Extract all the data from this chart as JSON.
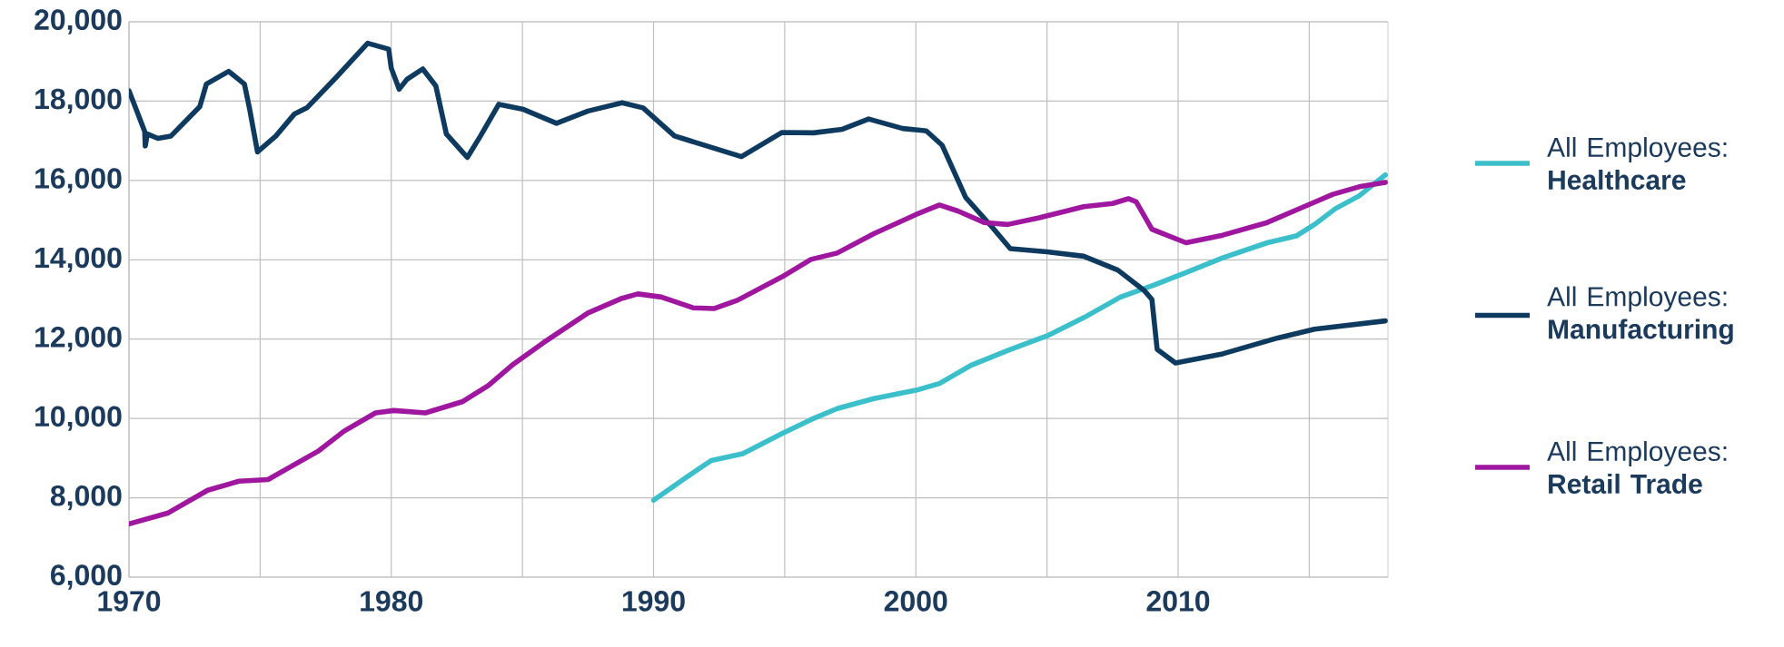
{
  "chart_data": {
    "type": "line",
    "xlim": [
      1970,
      2018
    ],
    "ylim": [
      6000,
      20000
    ],
    "xticks": [
      1970,
      {
        "value": 1975,
        "label": null
      },
      1980,
      {
        "value": 1985,
        "label": null
      },
      1990,
      {
        "value": 1995,
        "label": null
      },
      2000,
      {
        "value": 2005,
        "label": null
      },
      2010,
      {
        "value": 2015,
        "label": null
      }
    ],
    "yticks": [
      {
        "value": 6000,
        "label": "6,000"
      },
      {
        "value": 8000,
        "label": "8,000"
      },
      {
        "value": 10000,
        "label": "10,000"
      },
      {
        "value": 12000,
        "label": "12,000"
      },
      {
        "value": 14000,
        "label": "14,000"
      },
      {
        "value": 16000,
        "label": "16,000"
      },
      {
        "value": 18000,
        "label": "18,000"
      },
      {
        "value": 20000,
        "label": "20,000"
      }
    ],
    "grid": true,
    "legend": "right",
    "series": [
      {
        "name": "All Employees: **Healthcare**",
        "color": "#3bbfca",
        "x": [
          1990.0,
          1991.3,
          1992.2,
          1993.4,
          1994.9,
          1996.0,
          1997.0,
          1998.4,
          2000.0,
          2000.9,
          2002.1,
          2003.6,
          2005.0,
          2006.4,
          2007.8,
          2009.1,
          2010.3,
          2011.7,
          2013.4,
          2014.5,
          2015.2,
          2016.0,
          2016.9,
          2017.9
        ],
        "values": [
          7940,
          8540,
          8940,
          9110,
          9620,
          9970,
          10250,
          10500,
          10710,
          10880,
          11340,
          11740,
          12080,
          12540,
          13060,
          13370,
          13680,
          14050,
          14430,
          14600,
          14890,
          15290,
          15610,
          16140
        ]
      },
      {
        "name": "All Employees: **Manufacturing**",
        "color": "#0f3a5f",
        "x": [
          1970.0,
          1970.6,
          1970.62,
          1970.7,
          1971.1,
          1971.6,
          1972.7,
          1972.95,
          1973.8,
          1974.4,
          1974.6,
          1974.9,
          1975.6,
          1976.3,
          1976.8,
          1977.9,
          1979.1,
          1979.9,
          1980.0,
          1980.3,
          1980.6,
          1981.2,
          1981.7,
          1982.1,
          1982.9,
          1983.4,
          1984.1,
          1985.0,
          1986.3,
          1987.5,
          1988.8,
          1989.6,
          1990.8,
          1991.1,
          1993.35,
          1994.9,
          1996.1,
          1997.2,
          1998.2,
          1999.5,
          2000.4,
          2001.0,
          2001.9,
          2002.9,
          2003.6,
          2005.0,
          2006.4,
          2007.7,
          2008.7,
          2009.0,
          2009.2,
          2009.9,
          2011.7,
          2013.8,
          2015.2,
          2017.9
        ],
        "values": [
          18260,
          17230,
          16870,
          17170,
          17060,
          17120,
          17860,
          18430,
          18750,
          18430,
          17800,
          16720,
          17120,
          17670,
          17840,
          18600,
          19460,
          19310,
          18830,
          18300,
          18550,
          18810,
          18380,
          17170,
          16580,
          17120,
          17920,
          17800,
          17440,
          17750,
          17960,
          17830,
          17120,
          17060,
          16600,
          17210,
          17200,
          17290,
          17550,
          17310,
          17250,
          16890,
          15570,
          14830,
          14280,
          14200,
          14090,
          13740,
          13230,
          13000,
          11740,
          11400,
          11630,
          12030,
          12250,
          12460
        ]
      },
      {
        "name": "All Employees: **Retail Trade**",
        "color": "#a0179f",
        "x": [
          1970.0,
          1971.5,
          1973.0,
          1974.2,
          1975.3,
          1976.1,
          1977.2,
          1978.2,
          1979.4,
          1980.1,
          1981.3,
          1982.7,
          1983.7,
          1984.6,
          1985.8,
          1987.5,
          1988.8,
          1989.4,
          1990.3,
          1991.5,
          1992.3,
          1993.2,
          1994.9,
          1996.0,
          1997.0,
          1998.4,
          2000.0,
          2000.9,
          2001.6,
          2002.6,
          2003.5,
          2004.7,
          2006.4,
          2007.5,
          2008.1,
          2008.4,
          2009.0,
          2010.3,
          2011.7,
          2013.4,
          2014.8,
          2015.9,
          2016.9,
          2017.9
        ],
        "values": [
          7340,
          7620,
          8190,
          8420,
          8460,
          8760,
          9170,
          9680,
          10140,
          10200,
          10140,
          10420,
          10830,
          11340,
          11910,
          12660,
          13030,
          13140,
          13060,
          12790,
          12770,
          12980,
          13570,
          14010,
          14170,
          14660,
          15140,
          15380,
          15230,
          14940,
          14890,
          15060,
          15340,
          15420,
          15540,
          15460,
          14770,
          14430,
          14620,
          14940,
          15340,
          15650,
          15840,
          15950
        ]
      }
    ]
  }
}
